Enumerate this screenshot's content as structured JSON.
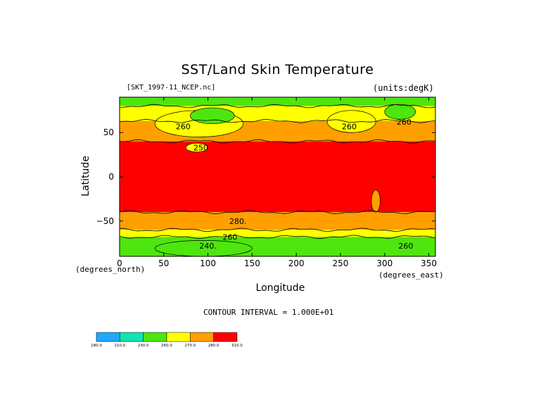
{
  "chart_data": {
    "type": "heatmap",
    "title": "SST/Land Skin Temperature",
    "dataset_label": "[SKT_1997-11_NCEP.nc]",
    "units_label": "(units:degK)",
    "xlabel": "Longitude",
    "xlabel_units": "(degrees_east)",
    "ylabel": "Latitude",
    "ylabel_units": "(degrees_north)",
    "xlim": [
      0,
      357.5
    ],
    "ylim": [
      -90,
      90
    ],
    "x_ticks": [
      0,
      50,
      100,
      150,
      200,
      250,
      300,
      350
    ],
    "y_ticks": [
      50,
      0,
      -50
    ],
    "y_tick_labels": [
      "50",
      "0",
      "−50"
    ],
    "contour_interval_text": "CONTOUR INTERVAL = 1.000E+01",
    "contour_interval": 10,
    "contour_labels": [
      {
        "text": "260",
        "lon": 72,
        "lat": 57
      },
      {
        "text": "260",
        "lon": 260,
        "lat": 57
      },
      {
        "text": "260",
        "lon": 322,
        "lat": 62
      },
      {
        "text": "250",
        "lon": 92,
        "lat": 33
      },
      {
        "text": "280.",
        "lon": 134,
        "lat": -50
      },
      {
        "text": "260",
        "lon": 125,
        "lat": -68
      },
      {
        "text": "240.",
        "lon": 100,
        "lat": -78
      },
      {
        "text": "260",
        "lon": 324,
        "lat": -78
      }
    ],
    "legend": {
      "levels": [
        180,
        210,
        230,
        260,
        270,
        280,
        310
      ],
      "level_labels": [
        "180.0",
        "210.0",
        "230.0",
        "260.0",
        "270.0",
        "280.0",
        "310.0"
      ],
      "colors": [
        "#1fa8ff",
        "#0ee6b2",
        "#4ee60e",
        "#ffff00",
        "#ff9f00",
        "#ff0000"
      ]
    },
    "bands": [
      {
        "value": 240,
        "color": "#4ee60e",
        "lat_top": 90,
        "lat_bottom": 80
      },
      {
        "value": 255,
        "color": "#ffff00",
        "lat_top": 80,
        "lat_bottom": 63
      },
      {
        "value": 275,
        "color": "#ff9f00",
        "lat_top": 63,
        "lat_bottom": 40
      },
      {
        "value": 295,
        "color": "#ff0000",
        "lat_top": 40,
        "lat_bottom": -40
      },
      {
        "value": 275,
        "color": "#ff9f00",
        "lat_top": -40,
        "lat_bottom": -60
      },
      {
        "value": 265,
        "color": "#ffff00",
        "lat_top": -60,
        "lat_bottom": -68
      },
      {
        "value": 245,
        "color": "#4ee60e",
        "lat_top": -68,
        "lat_bottom": -90
      }
    ],
    "regions": [
      {
        "name": "siberia-cold",
        "value": 255,
        "color": "#ffff00",
        "lon_range": [
          40,
          140
        ],
        "lat_range": [
          45,
          75
        ]
      },
      {
        "name": "siberia-core",
        "value": 245,
        "color": "#4ee60e",
        "lon_range": [
          80,
          130
        ],
        "lat_range": [
          60,
          78
        ]
      },
      {
        "name": "north-america-cold",
        "value": 255,
        "color": "#ffff00",
        "lon_range": [
          235,
          290
        ],
        "lat_range": [
          50,
          75
        ]
      },
      {
        "name": "greenland",
        "value": 235,
        "color": "#4ee60e",
        "lon_range": [
          300,
          335
        ],
        "lat_range": [
          65,
          82
        ]
      },
      {
        "name": "tibet",
        "value": 265,
        "color": "#ffff00",
        "lon_range": [
          75,
          100
        ],
        "lat_range": [
          28,
          38
        ]
      },
      {
        "name": "andes",
        "value": 275,
        "color": "#ff9f00",
        "lon_range": [
          285,
          295
        ],
        "lat_range": [
          -40,
          -15
        ]
      },
      {
        "name": "antarctica-interior",
        "value": 240,
        "color": "#4ee60e",
        "lon_range": [
          40,
          150
        ],
        "lat_range": [
          -90,
          -72
        ]
      }
    ],
    "grid": false
  }
}
